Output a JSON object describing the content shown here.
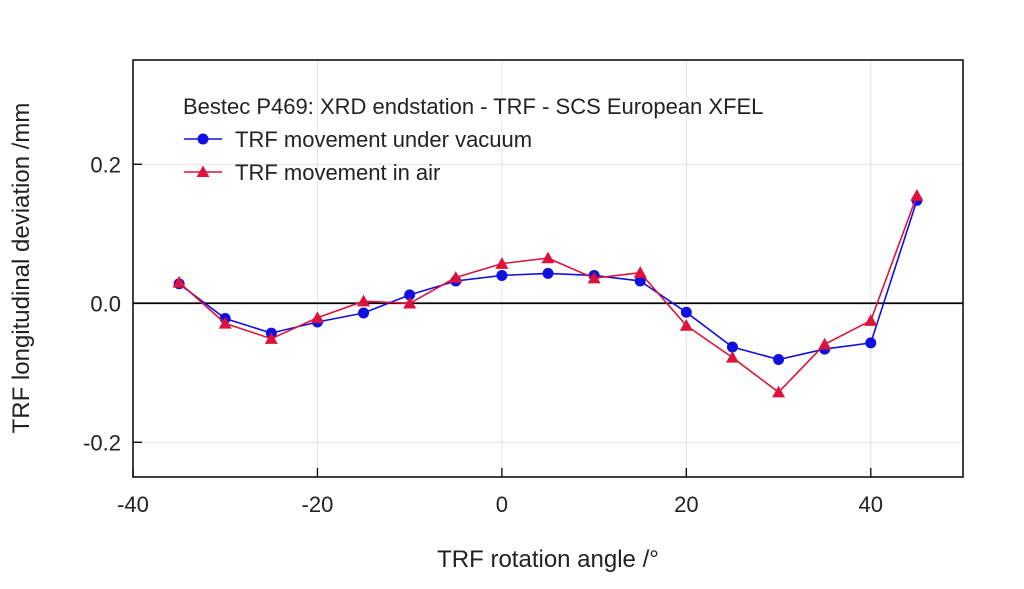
{
  "chart_data": {
    "type": "line",
    "title": "Bestec P469: XRD endstation - TRF - SCS European XFEL",
    "xlabel": "TRF rotation angle /°",
    "ylabel": "TRF longitudinal deviation /mm",
    "xlim": [
      -40,
      50
    ],
    "ylim": [
      -0.25,
      0.35
    ],
    "xticks": [
      {
        "value": -40,
        "label": "-40"
      },
      {
        "value": -20,
        "label": "-20"
      },
      {
        "value": 0,
        "label": "0"
      },
      {
        "value": 20,
        "label": "20"
      },
      {
        "value": 40,
        "label": "40"
      }
    ],
    "yticks": [
      {
        "value": -0.2,
        "label": "-0.2"
      },
      {
        "value": 0.0,
        "label": "0.0"
      },
      {
        "value": 0.2,
        "label": "0.2"
      }
    ],
    "grid": true,
    "zero_line": true,
    "legend_position": "top-left",
    "series": [
      {
        "name": "TRF movement under vacuum",
        "color": "#1010e0",
        "marker": "circle",
        "x": [
          -35,
          -30,
          -25,
          -20,
          -15,
          -10,
          -5,
          0,
          5,
          10,
          15,
          20,
          25,
          30,
          35,
          40,
          45
        ],
        "values": [
          0.028,
          -0.022,
          -0.043,
          -0.027,
          -0.014,
          0.012,
          0.032,
          0.04,
          0.043,
          0.04,
          0.032,
          -0.013,
          -0.063,
          -0.081,
          -0.066,
          -0.057,
          0.148
        ]
      },
      {
        "name": "TRF movement in air",
        "color": "#dc143c",
        "marker": "triangle",
        "x": [
          -35,
          -30,
          -25,
          -20,
          -15,
          -10,
          -5,
          0,
          5,
          10,
          15,
          20,
          25,
          30,
          35,
          40,
          45
        ],
        "values": [
          0.03,
          -0.029,
          -0.051,
          -0.021,
          0.003,
          0.0,
          0.037,
          0.057,
          0.065,
          0.036,
          0.044,
          -0.032,
          -0.078,
          -0.128,
          -0.059,
          -0.025,
          0.155
        ]
      }
    ]
  }
}
